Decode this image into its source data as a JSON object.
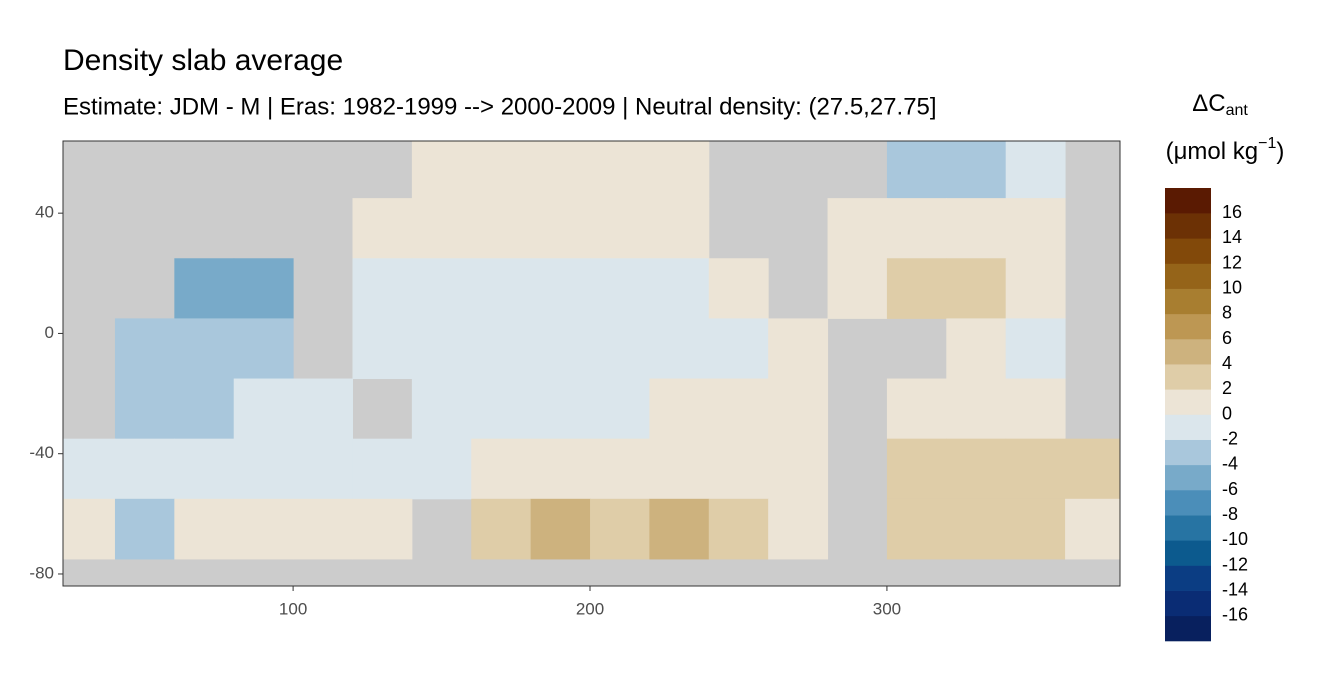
{
  "chart_data": {
    "type": "heatmap",
    "title": "Density slab average",
    "subtitle": "Estimate: JDM - M | Eras: 1982-1999 --> 2000-2009 | Neutral density: (27.5,27.75]",
    "x": [
      30,
      50,
      70,
      90,
      110,
      130,
      150,
      170,
      190,
      210,
      230,
      250,
      270,
      290,
      310,
      330,
      350,
      370
    ],
    "y": [
      55,
      35,
      15,
      -5,
      -25,
      -45,
      -65,
      -85
    ],
    "values": [
      [
        null,
        null,
        null,
        null,
        null,
        null,
        1,
        1,
        1,
        1,
        1,
        null,
        null,
        null,
        -3,
        -4,
        -2,
        null
      ],
      [
        null,
        null,
        null,
        null,
        null,
        1,
        1,
        1,
        1,
        1,
        1,
        null,
        null,
        1,
        1,
        1,
        1,
        null
      ],
      [
        null,
        null,
        -6,
        -5,
        null,
        -1,
        -1,
        -1,
        -1,
        -1,
        -1,
        1,
        null,
        1,
        2,
        3,
        1,
        null
      ],
      [
        null,
        -4,
        -4,
        -4,
        null,
        -1,
        -1,
        -1,
        -1,
        -1,
        -1,
        -1,
        1,
        null,
        null,
        1,
        -2,
        null
      ],
      [
        null,
        -3,
        -3,
        -2,
        -1,
        null,
        -1,
        -1,
        -1,
        -1,
        1,
        1,
        1,
        null,
        1,
        1,
        1,
        null
      ],
      [
        -1,
        -1,
        -1,
        -1,
        -1,
        -1,
        -1,
        1,
        1,
        1,
        1,
        1,
        1,
        null,
        2,
        2,
        2,
        2
      ],
      [
        1,
        -3,
        1,
        1,
        1,
        1,
        null,
        3,
        4,
        3,
        4,
        2,
        1,
        null,
        2,
        3,
        2,
        1
      ],
      [
        null,
        null,
        null,
        null,
        null,
        null,
        null,
        null,
        null,
        null,
        null,
        null,
        null,
        null,
        null,
        null,
        null,
        null
      ]
    ],
    "xlim": [
      22.5,
      378.5
    ],
    "ylim": [
      -84,
      64
    ],
    "xticks": [
      100,
      200,
      300
    ],
    "yticks": [
      40,
      0,
      -40,
      -80
    ],
    "land_color": "#cccccc",
    "legend": {
      "title": "ΔC",
      "title_sub": "ant",
      "unit": "(μmol kg",
      "unit_sup": "−1",
      "unit_end": ")",
      "lim": [
        -18,
        18
      ],
      "ticks": [
        16,
        14,
        12,
        10,
        8,
        6,
        4,
        2,
        0,
        -2,
        -4,
        -6,
        -8,
        -10,
        -12,
        -14,
        -16
      ],
      "colors": [
        "#08205e",
        "#0a2c74",
        "#0b3d83",
        "#0c5a8e",
        "#2774a3",
        "#4b8eb9",
        "#78aac9",
        "#a9c7dc",
        "#dbe6ec",
        "#ece4d6",
        "#dfcda8",
        "#cdb27e",
        "#bd9753",
        "#a87e30",
        "#956419",
        "#82490a",
        "#6c3105",
        "#5a1a02"
      ]
    }
  }
}
